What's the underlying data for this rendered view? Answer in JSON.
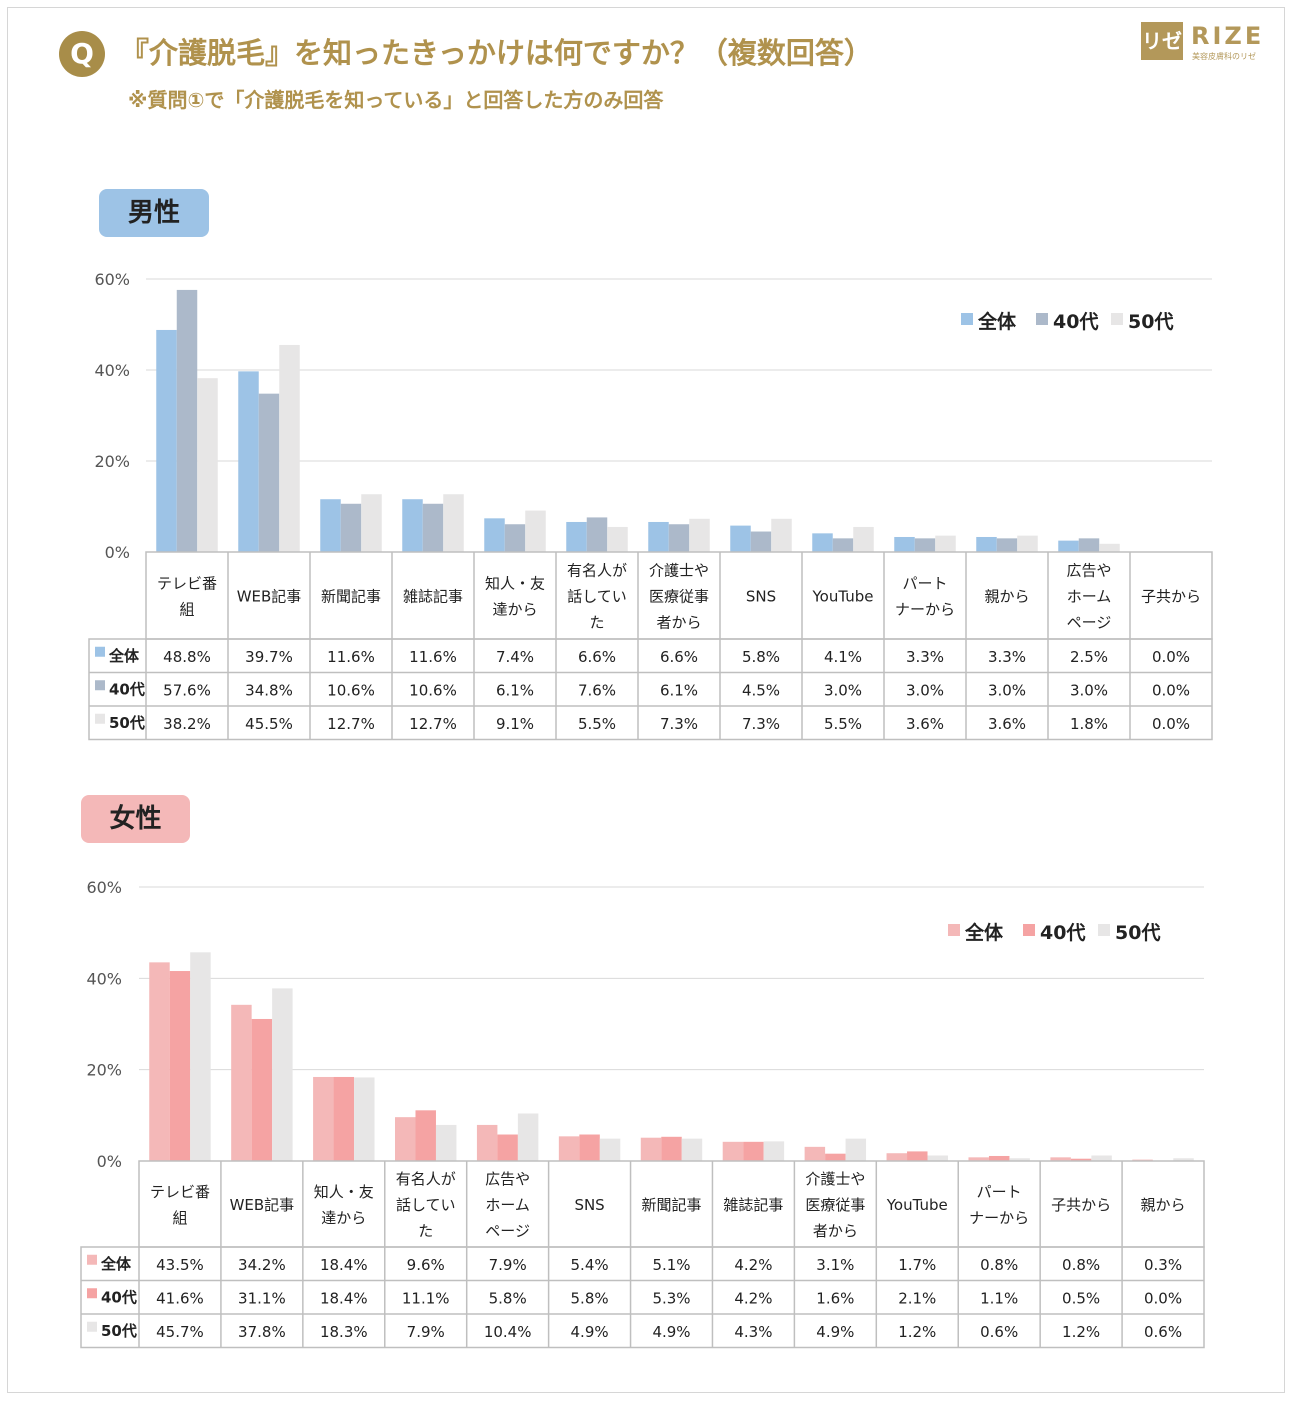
{
  "header": {
    "badge": "Q",
    "title": "『介護脱毛』を知ったきっかけは何ですか？（複数回答）",
    "subtitle": "※質問①で「介護脱毛を知っている」と回答した方のみ回答"
  },
  "logo": {
    "mark": "リゼ",
    "word": "RIZE",
    "tagline": "美容皮膚科のリゼ"
  },
  "colors": {
    "header_gold": "#b0924d",
    "male_all": "#9dc3e6",
    "male_40": "#acb9ca",
    "male_50": "#e7e6e6",
    "female_all": "#f4b8b8",
    "female_40": "#f5a3a3",
    "female_50": "#e7e6e6"
  },
  "chart_data": [
    {
      "type": "bar",
      "label": "男性",
      "ylim": [
        0,
        60
      ],
      "yticks": [
        "0%",
        "20%",
        "40%",
        "60%"
      ],
      "legend_position": "top-right",
      "categories": [
        [
          "テレビ番",
          "組"
        ],
        [
          "WEB記事"
        ],
        [
          "新聞記事"
        ],
        [
          "雑誌記事"
        ],
        [
          "知人・友",
          "達から"
        ],
        [
          "有名人が",
          "話してい",
          "た"
        ],
        [
          "介護士や",
          "医療従事",
          "者から"
        ],
        [
          "SNS"
        ],
        [
          "YouTube"
        ],
        [
          "パート",
          "ナーから"
        ],
        [
          "親から"
        ],
        [
          "広告や",
          "ホーム",
          "ページ"
        ],
        [
          "子共から"
        ]
      ],
      "series": [
        {
          "name": "全体",
          "values": [
            48.8,
            39.7,
            11.6,
            11.6,
            7.4,
            6.6,
            6.6,
            5.8,
            4.1,
            3.3,
            3.3,
            2.5,
            0.0
          ],
          "labels": [
            "48.8%",
            "39.7%",
            "11.6%",
            "11.6%",
            "7.4%",
            "6.6%",
            "6.6%",
            "5.8%",
            "4.1%",
            "3.3%",
            "3.3%",
            "2.5%",
            "0.0%"
          ]
        },
        {
          "name": "40代",
          "values": [
            57.6,
            34.8,
            10.6,
            10.6,
            6.1,
            7.6,
            6.1,
            4.5,
            3.0,
            3.0,
            3.0,
            3.0,
            0.0
          ],
          "labels": [
            "57.6%",
            "34.8%",
            "10.6%",
            "10.6%",
            "6.1%",
            "7.6%",
            "6.1%",
            "4.5%",
            "3.0%",
            "3.0%",
            "3.0%",
            "3.0%",
            "0.0%"
          ]
        },
        {
          "name": "50代",
          "values": [
            38.2,
            45.5,
            12.7,
            12.7,
            9.1,
            5.5,
            7.3,
            7.3,
            5.5,
            3.6,
            3.6,
            1.8,
            0.0
          ],
          "labels": [
            "38.2%",
            "45.5%",
            "12.7%",
            "12.7%",
            "9.1%",
            "5.5%",
            "7.3%",
            "7.3%",
            "5.5%",
            "3.6%",
            "3.6%",
            "1.8%",
            "0.0%"
          ]
        }
      ]
    },
    {
      "type": "bar",
      "label": "女性",
      "ylim": [
        0,
        60
      ],
      "yticks": [
        "0%",
        "20%",
        "40%",
        "60%"
      ],
      "legend_position": "top-right",
      "categories": [
        [
          "テレビ番",
          "組"
        ],
        [
          "WEB記事"
        ],
        [
          "知人・友",
          "達から"
        ],
        [
          "有名人が",
          "話してい",
          "た"
        ],
        [
          "広告や",
          "ホーム",
          "ページ"
        ],
        [
          "SNS"
        ],
        [
          "新聞記事"
        ],
        [
          "雑誌記事"
        ],
        [
          "介護士や",
          "医療従事",
          "者から"
        ],
        [
          "YouTube"
        ],
        [
          "パート",
          "ナーから"
        ],
        [
          "子共から"
        ],
        [
          "親から"
        ]
      ],
      "series": [
        {
          "name": "全体",
          "values": [
            43.5,
            34.2,
            18.4,
            9.6,
            7.9,
            5.4,
            5.1,
            4.2,
            3.1,
            1.7,
            0.8,
            0.8,
            0.3
          ],
          "labels": [
            "43.5%",
            "34.2%",
            "18.4%",
            "9.6%",
            "7.9%",
            "5.4%",
            "5.1%",
            "4.2%",
            "3.1%",
            "1.7%",
            "0.8%",
            "0.8%",
            "0.3%"
          ]
        },
        {
          "name": "40代",
          "values": [
            41.6,
            31.1,
            18.4,
            11.1,
            5.8,
            5.8,
            5.3,
            4.2,
            1.6,
            2.1,
            1.1,
            0.5,
            0.0
          ],
          "labels": [
            "41.6%",
            "31.1%",
            "18.4%",
            "11.1%",
            "5.8%",
            "5.8%",
            "5.3%",
            "4.2%",
            "1.6%",
            "2.1%",
            "1.1%",
            "0.5%",
            "0.0%"
          ]
        },
        {
          "name": "50代",
          "values": [
            45.7,
            37.8,
            18.3,
            7.9,
            10.4,
            4.9,
            4.9,
            4.3,
            4.9,
            1.2,
            0.6,
            1.2,
            0.6
          ],
          "labels": [
            "45.7%",
            "37.8%",
            "18.3%",
            "7.9%",
            "10.4%",
            "4.9%",
            "4.9%",
            "4.3%",
            "4.9%",
            "1.2%",
            "0.6%",
            "1.2%",
            "0.6%"
          ]
        }
      ]
    }
  ]
}
